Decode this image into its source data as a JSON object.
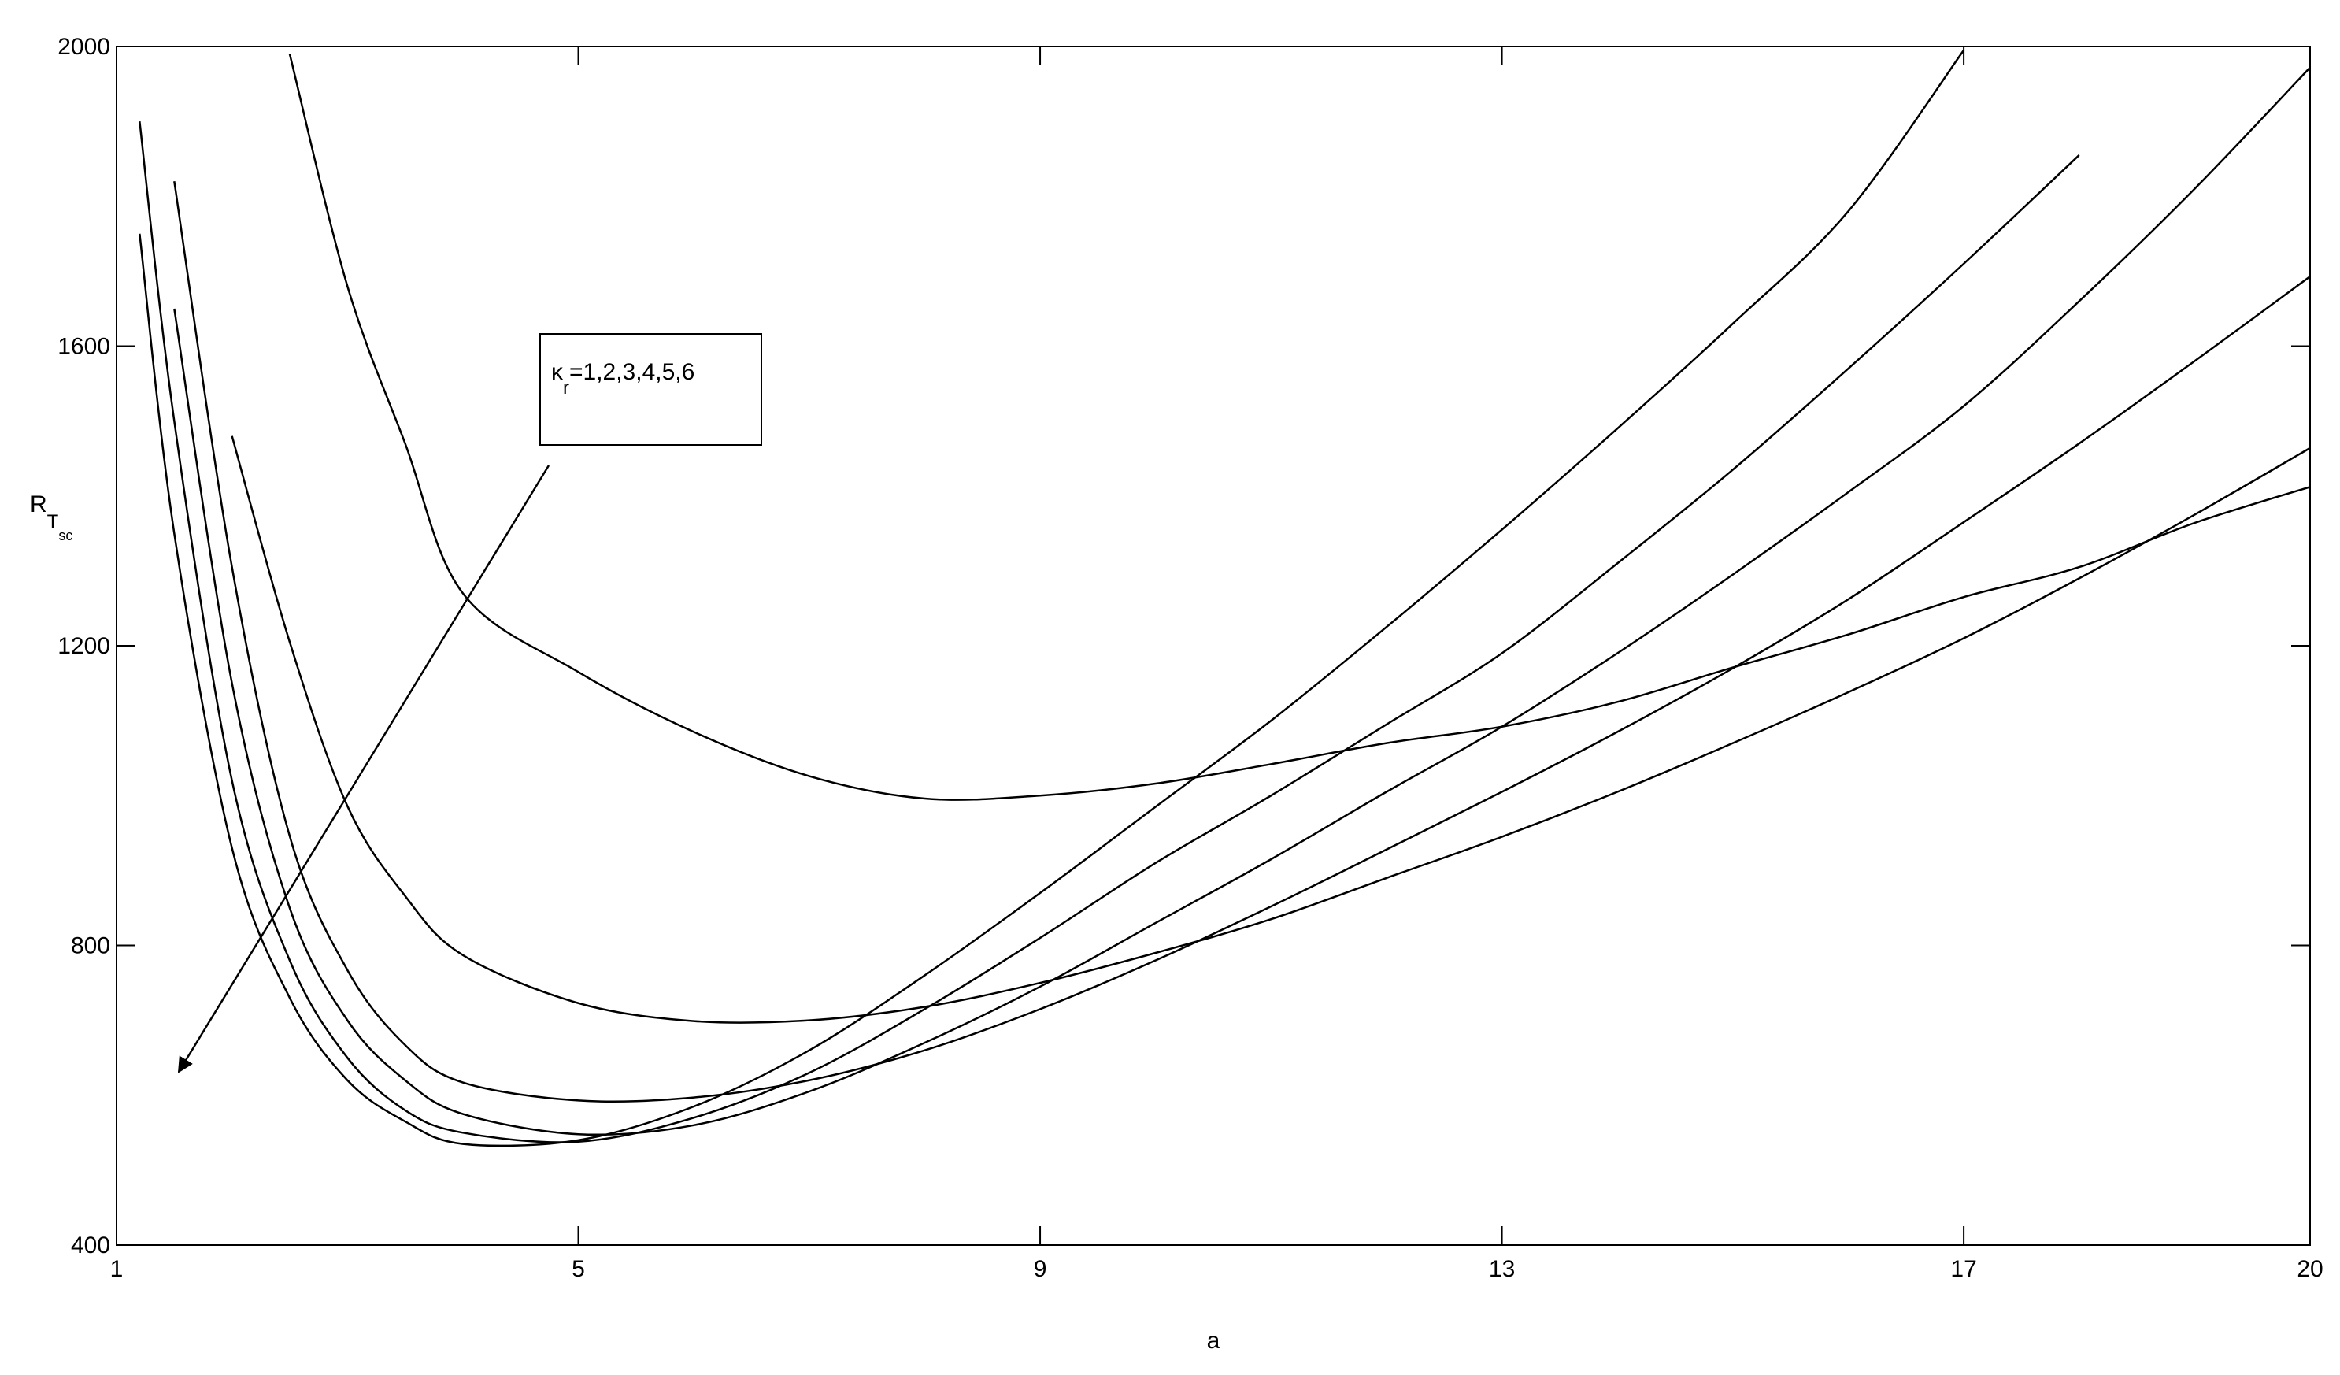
{
  "chart_data": {
    "type": "line",
    "x_label": "a",
    "y_label": {
      "main": "R",
      "sub": "T",
      "subsub": "sc"
    },
    "annotation": {
      "symbol": "κ",
      "sub": "r",
      "text": "=1,2,3,4,5,6"
    },
    "x": [
      1.2,
      1.5,
      2,
      2.5,
      3,
      3.5,
      4,
      5,
      6,
      7,
      8,
      9,
      10,
      11,
      12,
      13,
      14,
      15,
      16,
      17,
      18,
      19,
      20
    ],
    "series": [
      {
        "color": "#000000",
        "values": [
          null,
          null,
          null,
          1990,
          1680,
          1470,
          1270,
          1165,
          1085,
          1026,
          996,
          1000,
          1016,
          1042,
          1070,
          1092,
          1125,
          1171,
          1215,
          1265,
          1305,
          1364,
          1412
        ]
      },
      {
        "color": "#000000",
        "values": [
          null,
          null,
          1480,
          1205,
          986,
          866,
          787,
          723,
          699,
          700,
          718,
          750,
          790,
          835,
          890,
          945,
          1005,
          1070,
          1138,
          1210,
          1290,
          1375,
          1464
        ]
      },
      {
        "color": "#000000",
        "values": [
          null,
          1820,
          1305,
          946,
          767,
          667,
          617,
          593,
          597,
          620,
          660,
          715,
          780,
          852,
          928,
          1005,
          1085,
          1170,
          1262,
          1365,
          1470,
          1580,
          1693
        ]
      },
      {
        "color": "#000000",
        "values": [
          null,
          1650,
          1150,
          850,
          700,
          620,
          575,
          548,
          560,
          605,
          670,
          745,
          830,
          915,
          1005,
          1092,
          1190,
          1295,
          1405,
          1520,
          1660,
          1810,
          1972
        ]
      },
      {
        "color": "#000000",
        "values": [
          1900,
          1500,
          1020,
          780,
          650,
          580,
          550,
          538,
          570,
          630,
          715,
          810,
          910,
          1000,
          1095,
          1190,
          1310,
          1435,
          1570,
          1710,
          1855,
          null,
          null
        ]
      },
      {
        "color": "#000000",
        "values": [
          1750,
          1350,
          930,
          730,
          620,
          565,
          535,
          540,
          585,
          660,
          760,
          870,
          985,
          1100,
          1225,
          1355,
          1490,
          1630,
          1780,
          1995,
          null,
          null,
          null
        ]
      }
    ],
    "xlim": [
      1,
      20
    ],
    "xticks": [
      1,
      5,
      9,
      13,
      17,
      20
    ],
    "ylim": [
      400,
      2000
    ],
    "yticks": [
      400,
      800,
      1200,
      1600,
      2000
    ],
    "grid": false
  }
}
